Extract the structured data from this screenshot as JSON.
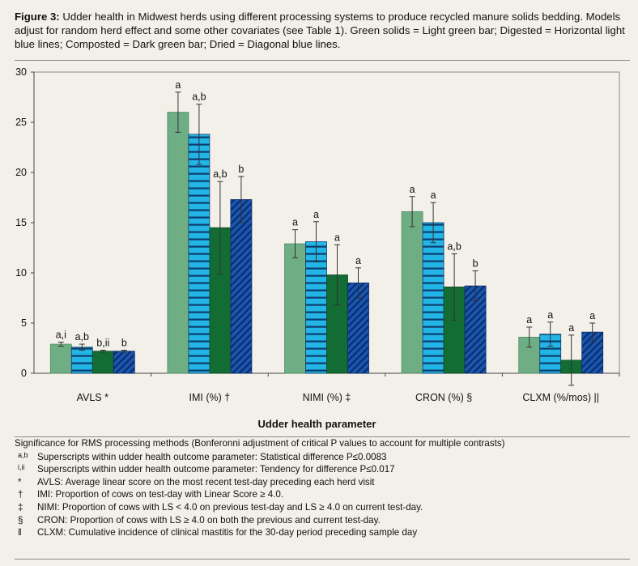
{
  "figure": {
    "label": "Figure 3:",
    "caption": "Udder health in Midwest herds using different processing systems to produce recycled manure solids bedding. Models adjust for random herd effect and some other covariates (see Table 1). Green solids = Light green bar; Digested = Horizontal light blue lines; Composted = Dark green bar; Dried = Diagonal blue lines."
  },
  "colors": {
    "green_solids": "#6fae84",
    "digested_fill": "#22b5e6",
    "digested_lines": "#0d3d6e",
    "composted": "#136c34",
    "dried_fill": "#1a56b0",
    "dried_lines": "#0a2a66",
    "background": "#f3f0e9"
  },
  "chart_data": {
    "type": "bar",
    "xlabel": "Udder health parameter",
    "ylim": [
      0,
      30
    ],
    "yticks": [
      0,
      5,
      10,
      15,
      20,
      25,
      30
    ],
    "grid": false,
    "categories": [
      "AVLS *",
      "IMI (%) †",
      "NIMI (%) ‡",
      "CRON (%) §",
      "CLXM (%/mos) ||"
    ],
    "series": [
      {
        "values": [
          2.9,
          26.0,
          12.9,
          16.1,
          3.6
        ],
        "error": [
          0.2,
          2.0,
          1.4,
          1.5,
          1.0
        ],
        "labels": [
          "a,i",
          "a",
          "a",
          "a",
          "a"
        ]
      },
      {
        "values": [
          2.6,
          23.8,
          13.1,
          15.0,
          3.9
        ],
        "error": [
          0.3,
          3.0,
          2.0,
          2.0,
          1.2
        ],
        "labels": [
          "a,b",
          "a,b",
          "a",
          "a",
          "a"
        ]
      },
      {
        "values": [
          2.2,
          14.5,
          9.8,
          8.6,
          1.3
        ],
        "error": [
          0.1,
          4.6,
          3.0,
          3.3,
          2.5
        ],
        "labels": [
          "b,ii",
          "a,b",
          "a",
          "a,b",
          "a"
        ]
      },
      {
        "values": [
          2.2,
          17.3,
          9.0,
          8.7,
          4.1
        ],
        "error": [
          0.1,
          2.3,
          1.5,
          1.5,
          0.9
        ],
        "labels": [
          "b",
          "b",
          "a",
          "b",
          "a"
        ]
      }
    ]
  },
  "notes": {
    "heading": "Significance for RMS processing methods (Bonferonni adjustment of critical P values to account for multiple contrasts)",
    "items": [
      {
        "symbol": "a,b",
        "sup": true,
        "text": "Superscripts within udder health outcome parameter: Statistical difference P≤0.0083"
      },
      {
        "symbol": "i,ii",
        "sup": true,
        "text": "Superscripts within udder health outcome parameter: Tendency for difference P≤0.017"
      },
      {
        "symbol": "*",
        "sup": false,
        "text": "AVLS: Average linear score on the most recent test-day preceding each herd visit"
      },
      {
        "symbol": "†",
        "sup": false,
        "text": "IMI: Proportion of cows on test-day with Linear Score ≥ 4.0."
      },
      {
        "symbol": "‡",
        "sup": false,
        "text": "NIMI: Proportion of cows with LS < 4.0 on previous test-day and LS ≥ 4.0 on current test-day."
      },
      {
        "symbol": "§",
        "sup": false,
        "text": "CRON: Proportion of cows with LS ≥ 4.0 on both the previous and current test-day."
      },
      {
        "symbol": "ǁ",
        "sup": false,
        "text": "CLXM: Cumulative incidence of clinical mastitis for the 30-day period preceding sample day"
      }
    ]
  }
}
